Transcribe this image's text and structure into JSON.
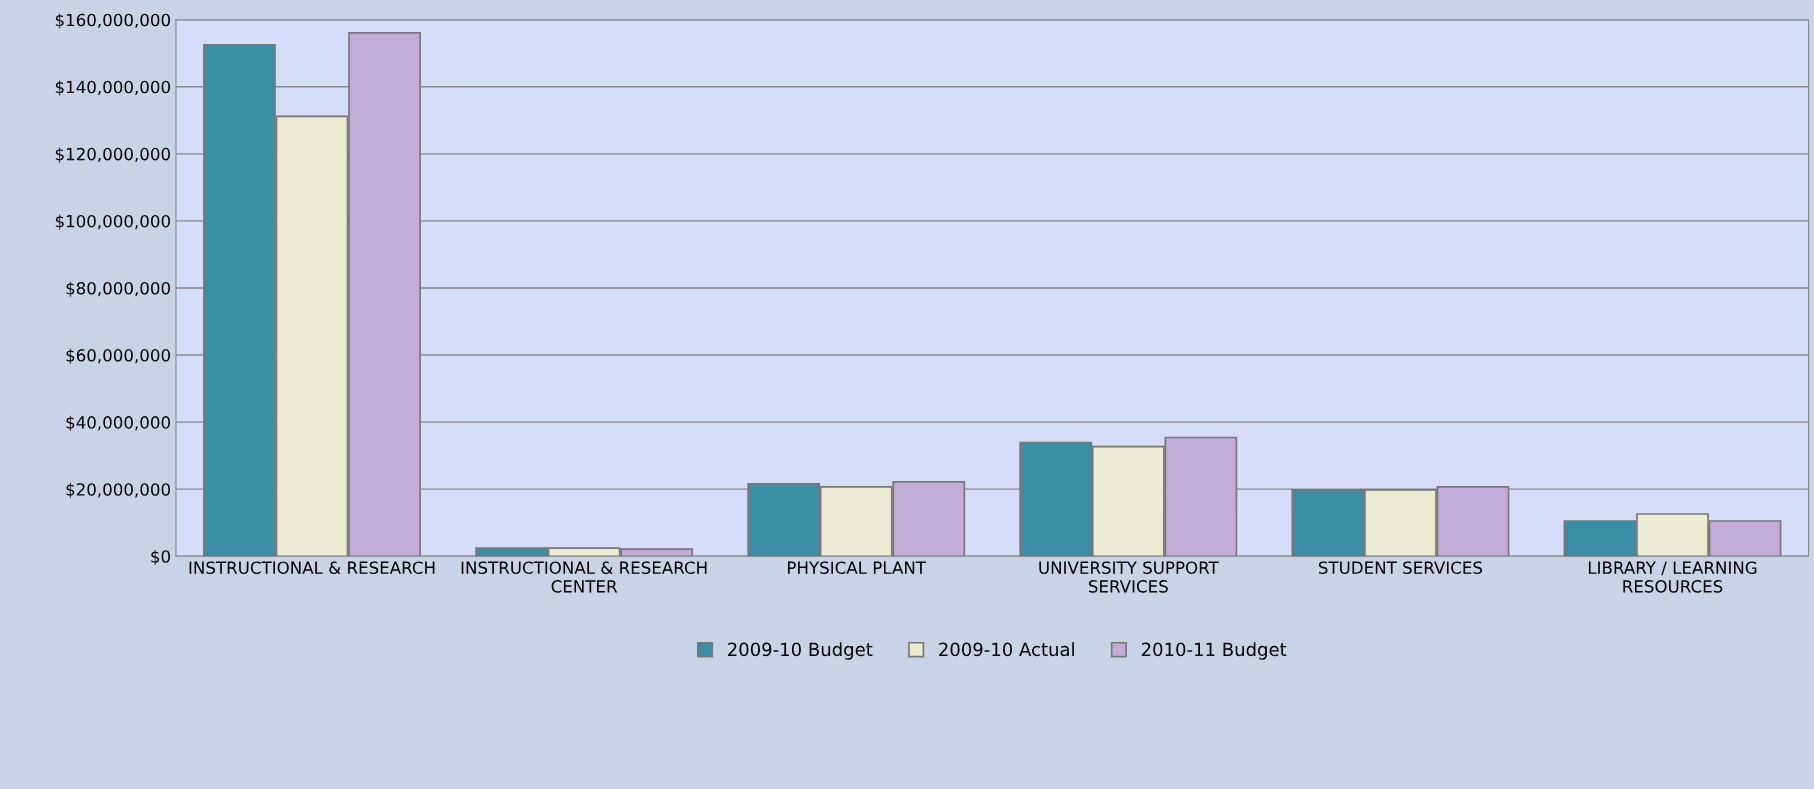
{
  "chart_data": {
    "type": "bar",
    "categories": [
      "INSTRUCTIONAL & RESEARCH",
      "INSTRUCTIONAL & RESEARCH\nCENTER",
      "PHYSICAL PLANT",
      "UNIVERSITY SUPPORT\nSERVICES",
      "STUDENT SERVICES",
      "LIBRARY / LEARNING\nRESOURCES"
    ],
    "series": [
      {
        "name": "2009-10 Budget",
        "color": "#3a8fa6",
        "values": [
          152500000,
          2400000,
          21600000,
          33900000,
          19800000,
          10500000
        ]
      },
      {
        "name": "2009-10 Actual",
        "color": "#ebebd3",
        "values": [
          131200000,
          2400000,
          20700000,
          32700000,
          19800000,
          12600000
        ]
      },
      {
        "name": "2010-11 Budget",
        "color": "#c0acd6",
        "values": [
          156100000,
          2100000,
          22200000,
          35400000,
          20700000,
          10500000
        ]
      }
    ],
    "ylim": [
      0,
      160000000
    ],
    "yticks": [
      {
        "value": 0,
        "label": "$0"
      },
      {
        "value": 20000000,
        "label": "$20,000,000"
      },
      {
        "value": 40000000,
        "label": "$40,000,000"
      },
      {
        "value": 60000000,
        "label": "$60,000,000"
      },
      {
        "value": 80000000,
        "label": "$80,000,000"
      },
      {
        "value": 100000000,
        "label": "$100,000,000"
      },
      {
        "value": 120000000,
        "label": "$120,000,000"
      },
      {
        "value": 140000000,
        "label": "$140,000,000"
      },
      {
        "value": 160000000,
        "label": "$160,000,000"
      }
    ],
    "grid": "y",
    "legend": "bottom"
  }
}
